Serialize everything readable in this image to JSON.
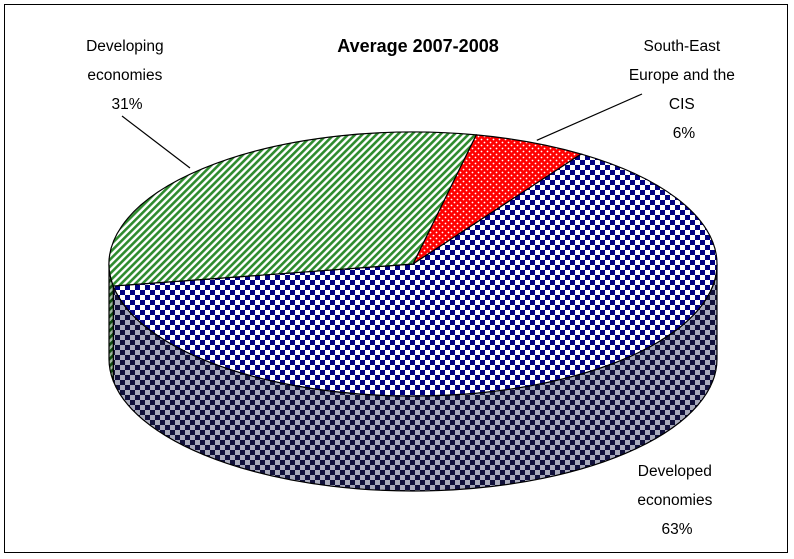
{
  "chart_data": {
    "type": "pie",
    "title": "Average 2007-2008",
    "slices": [
      {
        "name": "South-East Europe and the CIS",
        "label_lines": [
          "South-East",
          "Europe and the",
          "CIS"
        ],
        "pct_label": "6%",
        "value": 6,
        "color": "#ff0000",
        "pattern": "dots"
      },
      {
        "name": "Developed economies",
        "label_lines": [
          "Developed",
          "economies"
        ],
        "pct_label": "63%",
        "value": 63,
        "color": "#000080",
        "pattern": "checker"
      },
      {
        "name": "Developing economies",
        "label_lines": [
          "Developing",
          "economies"
        ],
        "pct_label": "31%",
        "value": 31,
        "color": "#2e8b2e",
        "pattern": "diagonal-stripes"
      }
    ],
    "legend": "none",
    "style": "3d-pie"
  }
}
